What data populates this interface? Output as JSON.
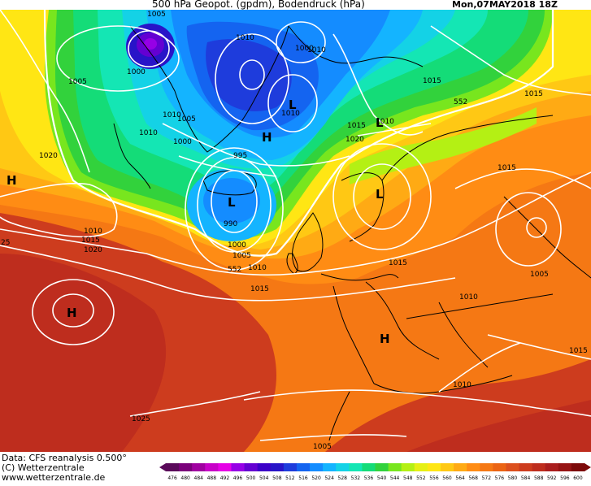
{
  "header": {
    "title": "500 hPa Geopot. (gpdm), Bodendruck (hPa)",
    "date": "Mon,07MAY2018 18Z"
  },
  "footer": {
    "data_source": "Data: CFS reanalysis 0.500°",
    "copyright": "(C) Wetterzentrale",
    "website": "www.wetterzentrale.de"
  },
  "pressure_centers": [
    {
      "type": "H",
      "region": "north-atlantic-west-edge"
    },
    {
      "type": "H",
      "region": "east-greenland"
    },
    {
      "type": "L",
      "region": "north-of-norway"
    },
    {
      "type": "L",
      "region": "south-of-iceland"
    },
    {
      "type": "L",
      "region": "southern-scandinavia"
    },
    {
      "type": "L",
      "region": "norway-coast"
    },
    {
      "type": "H",
      "region": "azores"
    },
    {
      "type": "H",
      "region": "western-mediterranean"
    }
  ],
  "isobar_labels": [
    "1005",
    "1010",
    "1000",
    "1005",
    "1010",
    "1020",
    "1005",
    "1000",
    "1010",
    "1000",
    "995",
    "990",
    "1000",
    "1005",
    "1010",
    "1015",
    "1015",
    "1010",
    "1020",
    "1015",
    "1015",
    "1020",
    "1010",
    "1015",
    "1015",
    "1010",
    "1005",
    "1010",
    "1025",
    "1005",
    "1015",
    "1010",
    "1015",
    "1010",
    "25"
  ],
  "contour_labels": [
    "552",
    "552"
  ],
  "colorbar": {
    "ticks": [
      "476",
      "480",
      "484",
      "488",
      "492",
      "496",
      "500",
      "504",
      "508",
      "512",
      "516",
      "520",
      "524",
      "528",
      "532",
      "536",
      "540",
      "544",
      "548",
      "552",
      "556",
      "560",
      "564",
      "568",
      "572",
      "576",
      "580",
      "584",
      "588",
      "592",
      "596",
      "600"
    ],
    "colors": [
      "#5a0a5a",
      "#7a007a",
      "#a000a0",
      "#c800c8",
      "#e600e6",
      "#9600e6",
      "#6400d2",
      "#3c00c8",
      "#2814c8",
      "#1e3cdc",
      "#1464f0",
      "#148cff",
      "#14b4ff",
      "#14d2e6",
      "#14e6b4",
      "#14dc78",
      "#32d23c",
      "#78e61e",
      "#b4f014",
      "#e6f014",
      "#ffe614",
      "#ffc814",
      "#ffaa14",
      "#ff8c14",
      "#f57814",
      "#eb6414",
      "#dc501e",
      "#cd3c1e",
      "#be2d1e",
      "#aa1e1e",
      "#961414",
      "#7d0a0a"
    ]
  }
}
